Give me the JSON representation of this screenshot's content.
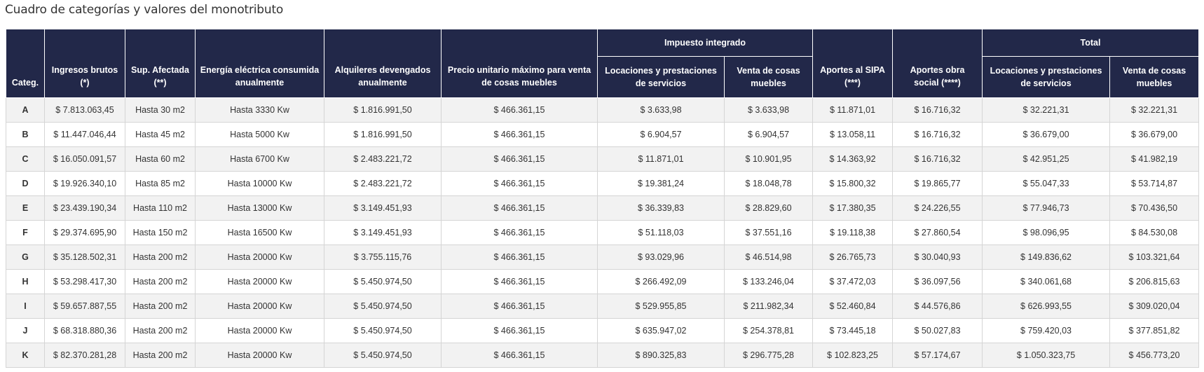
{
  "title": "Cuadro de categorías y valores del monotributo",
  "header": {
    "categ": "Categ.",
    "ingresos": "Ingresos brutos (*)",
    "superficie": "Sup. Afectada (**)",
    "energia": "Energía eléctrica consumida anualmente",
    "alquileres": "Alquileres devengados anualmente",
    "precio": "Precio unitario máximo para venta de cosas muebles",
    "impuesto_group": "Impuesto integrado",
    "impuesto_servicios": "Locaciones y prestaciones de servicios",
    "impuesto_muebles": "Venta de cosas muebles",
    "sipa": "Aportes al SIPA (***)",
    "obra_social": "Aportes obra social (****)",
    "total_group": "Total",
    "total_servicios": "Locaciones y prestaciones de servicios",
    "total_muebles": "Venta de cosas muebles"
  },
  "rows": [
    {
      "cat": "A",
      "ingresos": "$ 7.813.063,45",
      "sup": "Hasta 30 m2",
      "energia": "Hasta 3330 Kw",
      "alquileres": "$ 1.816.991,50",
      "precio": "$ 466.361,15",
      "imp_serv": "$ 3.633,98",
      "imp_mueb": "$ 3.633,98",
      "sipa": "$ 11.871,01",
      "obra": "$ 16.716,32",
      "tot_serv": "$ 32.221,31",
      "tot_mueb": "$ 32.221,31"
    },
    {
      "cat": "B",
      "ingresos": "$ 11.447.046,44",
      "sup": "Hasta 45 m2",
      "energia": "Hasta 5000 Kw",
      "alquileres": "$ 1.816.991,50",
      "precio": "$ 466.361,15",
      "imp_serv": "$ 6.904,57",
      "imp_mueb": "$ 6.904,57",
      "sipa": "$ 13.058,11",
      "obra": "$ 16.716,32",
      "tot_serv": "$ 36.679,00",
      "tot_mueb": "$ 36.679,00"
    },
    {
      "cat": "C",
      "ingresos": "$ 16.050.091,57",
      "sup": "Hasta 60 m2",
      "energia": "Hasta 6700 Kw",
      "alquileres": "$ 2.483.221,72",
      "precio": "$ 466.361,15",
      "imp_serv": "$ 11.871,01",
      "imp_mueb": "$ 10.901,95",
      "sipa": "$ 14.363,92",
      "obra": "$ 16.716,32",
      "tot_serv": "$ 42.951,25",
      "tot_mueb": "$ 41.982,19"
    },
    {
      "cat": "D",
      "ingresos": "$ 19.926.340,10",
      "sup": "Hasta 85 m2",
      "energia": "Hasta 10000 Kw",
      "alquileres": "$ 2.483.221,72",
      "precio": "$ 466.361,15",
      "imp_serv": "$ 19.381,24",
      "imp_mueb": "$ 18.048,78",
      "sipa": "$ 15.800,32",
      "obra": "$ 19.865,77",
      "tot_serv": "$ 55.047,33",
      "tot_mueb": "$ 53.714,87"
    },
    {
      "cat": "E",
      "ingresos": "$ 23.439.190,34",
      "sup": "Hasta 110 m2",
      "energia": "Hasta 13000 Kw",
      "alquileres": "$ 3.149.451,93",
      "precio": "$ 466.361,15",
      "imp_serv": "$ 36.339,83",
      "imp_mueb": "$ 28.829,60",
      "sipa": "$ 17.380,35",
      "obra": "$ 24.226,55",
      "tot_serv": "$ 77.946,73",
      "tot_mueb": "$ 70.436,50"
    },
    {
      "cat": "F",
      "ingresos": "$ 29.374.695,90",
      "sup": "Hasta 150 m2",
      "energia": "Hasta 16500 Kw",
      "alquileres": "$ 3.149.451,93",
      "precio": "$ 466.361,15",
      "imp_serv": "$ 51.118,03",
      "imp_mueb": "$ 37.551,16",
      "sipa": "$ 19.118,38",
      "obra": "$ 27.860,54",
      "tot_serv": "$ 98.096,95",
      "tot_mueb": "$ 84.530,08"
    },
    {
      "cat": "G",
      "ingresos": "$ 35.128.502,31",
      "sup": "Hasta 200 m2",
      "energia": "Hasta 20000 Kw",
      "alquileres": "$ 3.755.115,76",
      "precio": "$ 466.361,15",
      "imp_serv": "$ 93.029,96",
      "imp_mueb": "$ 46.514,98",
      "sipa": "$ 26.765,73",
      "obra": "$ 30.040,93",
      "tot_serv": "$ 149.836,62",
      "tot_mueb": "$ 103.321,64"
    },
    {
      "cat": "H",
      "ingresos": "$ 53.298.417,30",
      "sup": "Hasta 200 m2",
      "energia": "Hasta 20000 Kw",
      "alquileres": "$ 5.450.974,50",
      "precio": "$ 466.361,15",
      "imp_serv": "$ 266.492,09",
      "imp_mueb": "$ 133.246,04",
      "sipa": "$ 37.472,03",
      "obra": "$ 36.097,56",
      "tot_serv": "$ 340.061,68",
      "tot_mueb": "$ 206.815,63"
    },
    {
      "cat": "I",
      "ingresos": "$ 59.657.887,55",
      "sup": "Hasta 200 m2",
      "energia": "Hasta 20000 Kw",
      "alquileres": "$ 5.450.974,50",
      "precio": "$ 466.361,15",
      "imp_serv": "$ 529.955,85",
      "imp_mueb": "$ 211.982,34",
      "sipa": "$ 52.460,84",
      "obra": "$ 44.576,86",
      "tot_serv": "$ 626.993,55",
      "tot_mueb": "$ 309.020,04"
    },
    {
      "cat": "J",
      "ingresos": "$ 68.318.880,36",
      "sup": "Hasta 200 m2",
      "energia": "Hasta 20000 Kw",
      "alquileres": "$ 5.450.974,50",
      "precio": "$ 466.361,15",
      "imp_serv": "$ 635.947,02",
      "imp_mueb": "$ 254.378,81",
      "sipa": "$ 73.445,18",
      "obra": "$ 50.027,83",
      "tot_serv": "$ 759.420,03",
      "tot_mueb": "$ 377.851,82"
    },
    {
      "cat": "K",
      "ingresos": "$ 82.370.281,28",
      "sup": "Hasta 200 m2",
      "energia": "Hasta 20000 Kw",
      "alquileres": "$ 5.450.974,50",
      "precio": "$ 466.361,15",
      "imp_serv": "$ 890.325,83",
      "imp_mueb": "$ 296.775,28",
      "sipa": "$ 102.823,25",
      "obra": "$ 57.174,67",
      "tot_serv": "$ 1.050.323,75",
      "tot_mueb": "$ 456.773,20"
    }
  ],
  "colors": {
    "header_bg": "#222849",
    "header_text": "#ffffff",
    "row_alt_bg": "#f2f2f2",
    "border": "#d5d5d5"
  }
}
